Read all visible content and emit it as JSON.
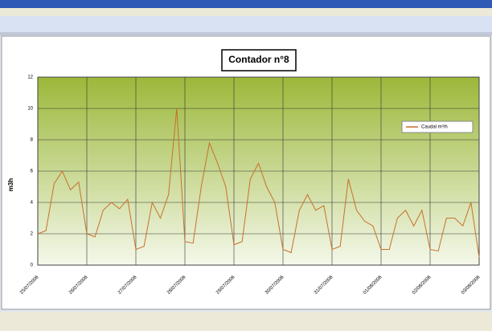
{
  "chart_data": {
    "type": "line",
    "title": "Contador n°8",
    "y_label": "m3h",
    "categories": [
      "25/07/2006",
      null,
      null,
      null,
      null,
      null,
      "26/07/2006",
      null,
      null,
      null,
      null,
      null,
      "27/07/2006",
      null,
      null,
      null,
      null,
      null,
      "28/07/2006",
      null,
      null,
      null,
      null,
      null,
      "29/07/2006",
      null,
      null,
      null,
      null,
      null,
      "30/07/2006",
      null,
      null,
      null,
      null,
      null,
      "31/07/2006",
      null,
      null,
      null,
      null,
      null,
      "01/08/2006",
      null,
      null,
      null,
      null,
      null,
      "02/08/2006",
      null,
      null,
      null,
      null,
      null,
      "03/08/2006"
    ],
    "series": [
      {
        "name": "Caudal m³/h",
        "color": "#c8702a",
        "values": [
          2.0,
          2.2,
          5.2,
          6.0,
          4.8,
          5.3,
          2.0,
          1.8,
          3.5,
          4.0,
          3.6,
          4.2,
          1.0,
          1.2,
          4.0,
          3.0,
          4.5,
          10.0,
          1.5,
          1.4,
          5.0,
          7.8,
          6.5,
          5.0,
          1.3,
          1.5,
          5.5,
          6.5,
          5.0,
          4.0,
          1.0,
          0.8,
          3.5,
          4.5,
          3.5,
          3.8,
          1.0,
          1.2,
          5.5,
          3.5,
          2.8,
          2.5,
          1.0,
          1.0,
          3.0,
          3.5,
          2.5,
          3.5,
          1.0,
          0.9,
          3.0,
          3.0,
          2.5,
          4.0,
          0.5
        ]
      }
    ],
    "ylim": [
      0,
      12
    ],
    "yticks": [
      0,
      2,
      4,
      6,
      8,
      10,
      12
    ],
    "grid": true,
    "legend": "right"
  }
}
